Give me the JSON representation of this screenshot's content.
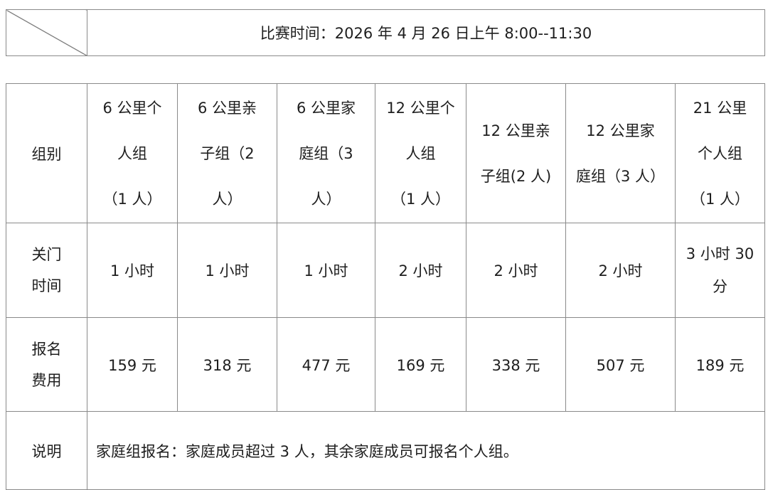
{
  "schedule": {
    "time_text": "比赛时间：2026 年 4 月 26 日上午 8:00--11:30"
  },
  "table": {
    "row_labels": {
      "group": [
        "组别"
      ],
      "cutoff": [
        "关门",
        "时间"
      ],
      "fee": [
        "报名",
        "费用"
      ],
      "note": [
        "说明"
      ]
    },
    "groups": [
      {
        "name_lines": [
          "6 公里个",
          "人组",
          "（1 人）"
        ],
        "cutoff": "1 小时",
        "fee": "159 元"
      },
      {
        "name_lines": [
          "6 公里亲",
          "子组（2",
          "人）"
        ],
        "cutoff": "1 小时",
        "fee": "318 元"
      },
      {
        "name_lines": [
          "6 公里家",
          "庭组（3",
          "人）"
        ],
        "cutoff": "1 小时",
        "fee": "477 元"
      },
      {
        "name_lines": [
          "12 公里个",
          "人组",
          "（1 人）"
        ],
        "cutoff": "2 小时",
        "fee": "169 元"
      },
      {
        "name_lines": [
          "12 公里亲",
          "子组(2 人)"
        ],
        "cutoff": "2 小时",
        "fee": "338 元"
      },
      {
        "name_lines": [
          "12 公里家",
          "庭组（3 人）"
        ],
        "cutoff": "2 小时",
        "fee": "507 元"
      },
      {
        "name_lines": [
          "21 公里",
          "个人组",
          "（1 人）"
        ],
        "cutoff_lines": [
          "3 小时 30",
          "分"
        ],
        "fee": "189 元"
      }
    ],
    "note_text": "家庭组报名：家庭成员超过 3 人，其余家庭成员可报名个人组。"
  }
}
